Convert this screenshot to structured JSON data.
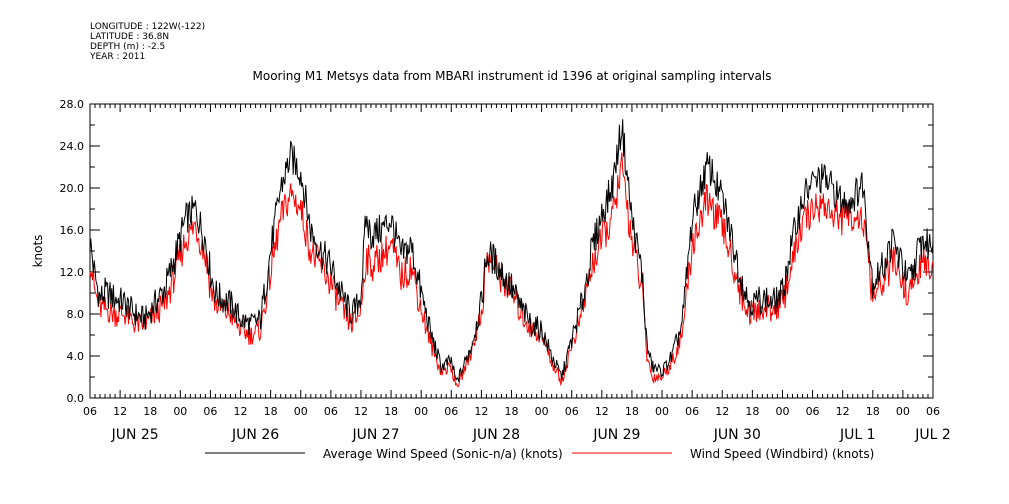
{
  "header": {
    "longitude": "LONGITUDE : 122W(-122)",
    "latitude": "LATITUDE : 36.8N",
    "depth": "DEPTH (m) : -2.5",
    "year": "YEAR : 2011"
  },
  "chart_data": {
    "type": "line",
    "title": "Mooring M1 Metsys data from MBARI instrument id 1396 at original sampling intervals",
    "ylabel": "knots",
    "xlabel": "",
    "ylim": [
      0,
      28
    ],
    "yticks": [
      "0.0",
      "4.0",
      "8.0",
      "12.0",
      "16.0",
      "20.0",
      "24.0",
      "28.0"
    ],
    "x_unit": "hours since 2011-06-25 06:00",
    "xlim": [
      0,
      168
    ],
    "hour_ticks": [
      "06",
      "12",
      "18",
      "00",
      "06",
      "12",
      "18",
      "00",
      "06",
      "12",
      "18",
      "00",
      "06",
      "12",
      "18",
      "00",
      "06",
      "12",
      "18",
      "00",
      "06",
      "12",
      "18",
      "00",
      "06",
      "12",
      "18",
      "00",
      "06"
    ],
    "day_labels": [
      {
        "label": "JUN 25",
        "x": 9
      },
      {
        "label": "JUN 26",
        "x": 33
      },
      {
        "label": "JUN 27",
        "x": 57
      },
      {
        "label": "JUN 28",
        "x": 81
      },
      {
        "label": "JUN 29",
        "x": 105
      },
      {
        "label": "JUN 30",
        "x": 129
      },
      {
        "label": "JUL  1",
        "x": 153
      },
      {
        "label": "JUL  2",
        "x": 168
      }
    ],
    "grid": false,
    "legend_position": "bottom",
    "series": [
      {
        "name": "Average Wind Speed (Sonic-n/a) (knots)",
        "color": "#000000",
        "x": [
          0,
          1,
          2,
          3,
          5,
          7,
          9,
          11,
          13,
          15,
          17,
          19,
          21,
          23,
          24,
          25,
          26,
          28,
          30,
          32,
          34,
          36,
          38,
          40,
          42,
          44,
          46,
          48,
          50,
          52,
          53,
          54,
          55,
          56,
          58,
          60,
          62,
          64,
          66,
          68,
          70,
          72,
          73,
          74,
          76,
          78,
          79,
          80,
          82,
          84,
          86,
          88,
          90,
          92,
          94,
          96,
          98,
          100,
          102,
          104,
          106,
          108,
          110,
          111,
          112,
          114,
          116,
          118,
          120,
          122,
          123,
          124,
          125,
          126,
          128,
          130,
          131,
          132,
          134,
          136,
          138,
          140,
          142,
          144,
          146,
          148,
          150,
          152,
          154,
          156,
          158,
          160,
          162,
          163,
          164,
          165,
          166,
          167,
          168
        ],
        "y": [
          15.0,
          11.5,
          9.5,
          10.0,
          9.5,
          9.0,
          8.0,
          7.5,
          9.0,
          10.5,
          13.5,
          17.0,
          18.0,
          15.0,
          12.0,
          10.0,
          9.5,
          9.0,
          7.5,
          7.0,
          7.5,
          14.0,
          20.0,
          23.0,
          21.5,
          16.0,
          14.0,
          12.5,
          10.0,
          8.0,
          8.5,
          10.0,
          17.0,
          15.5,
          16.0,
          17.0,
          13.5,
          14.5,
          10.0,
          6.0,
          3.0,
          3.5,
          1.5,
          2.5,
          5.0,
          9.0,
          13.5,
          13.5,
          12.0,
          10.5,
          8.5,
          7.0,
          6.5,
          4.0,
          2.0,
          5.5,
          9.0,
          14.0,
          17.5,
          20.0,
          26.0,
          17.0,
          12.0,
          5.0,
          3.0,
          2.5,
          4.0,
          7.0,
          17.0,
          20.5,
          22.0,
          21.5,
          20.0,
          19.0,
          15.0,
          11.0,
          9.5,
          9.0,
          9.5,
          9.0,
          10.0,
          15.0,
          19.0,
          20.5,
          21.0,
          20.0,
          18.5,
          19.0,
          20.5,
          11.0,
          12.5,
          15.0,
          12.5,
          11.0,
          12.0,
          14.0,
          15.0,
          14.5,
          15.0
        ]
      },
      {
        "name": "Wind Speed (Windbird) (knots)",
        "color": "#ff0000",
        "x": [
          0,
          1,
          2,
          3,
          5,
          7,
          9,
          11,
          13,
          15,
          17,
          19,
          21,
          23,
          24,
          25,
          26,
          28,
          30,
          32,
          34,
          36,
          38,
          40,
          42,
          44,
          46,
          48,
          50,
          52,
          53,
          54,
          55,
          56,
          58,
          60,
          62,
          64,
          66,
          68,
          70,
          72,
          73,
          74,
          76,
          78,
          79,
          80,
          82,
          84,
          86,
          88,
          90,
          92,
          94,
          96,
          98,
          100,
          102,
          104,
          106,
          108,
          110,
          111,
          112,
          114,
          116,
          118,
          120,
          122,
          123,
          124,
          125,
          126,
          128,
          130,
          131,
          132,
          134,
          136,
          138,
          140,
          142,
          144,
          146,
          148,
          150,
          152,
          154,
          156,
          158,
          160,
          162,
          163,
          164,
          165,
          166,
          167,
          168
        ],
        "y": [
          13.5,
          10.0,
          8.5,
          8.5,
          8.0,
          8.0,
          7.0,
          7.0,
          8.0,
          9.0,
          12.0,
          15.0,
          16.5,
          13.5,
          10.5,
          9.0,
          8.5,
          8.0,
          6.5,
          6.0,
          6.5,
          12.0,
          17.0,
          19.5,
          18.0,
          14.0,
          12.5,
          11.0,
          8.5,
          7.0,
          7.5,
          8.5,
          13.5,
          12.5,
          13.5,
          14.5,
          11.5,
          12.5,
          8.5,
          5.0,
          2.5,
          3.0,
          1.0,
          2.0,
          4.5,
          8.0,
          13.0,
          13.0,
          11.5,
          10.0,
          8.0,
          6.5,
          6.0,
          3.5,
          1.5,
          5.0,
          8.0,
          12.5,
          15.0,
          17.0,
          22.0,
          15.0,
          10.5,
          4.0,
          2.0,
          2.0,
          3.5,
          6.0,
          14.5,
          17.5,
          19.0,
          18.0,
          17.0,
          16.5,
          13.0,
          9.5,
          8.5,
          8.0,
          8.5,
          8.5,
          9.0,
          13.0,
          16.5,
          18.0,
          18.5,
          17.5,
          17.0,
          17.5,
          17.0,
          9.5,
          11.0,
          13.0,
          11.0,
          10.0,
          10.5,
          12.0,
          13.0,
          12.5,
          13.0
        ]
      }
    ]
  }
}
